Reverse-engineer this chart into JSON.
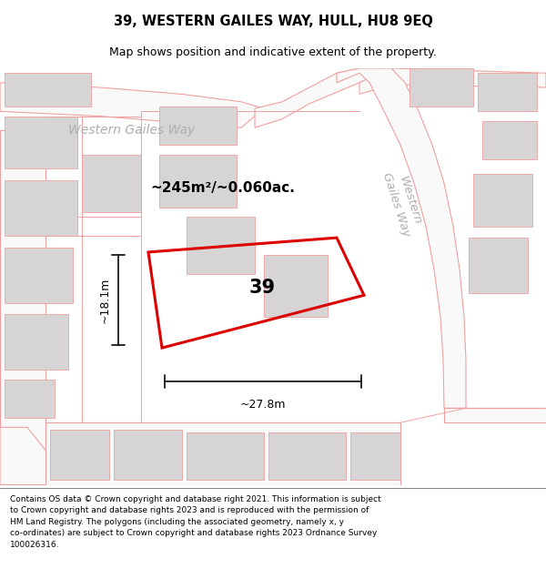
{
  "title_line1": "39, WESTERN GAILES WAY, HULL, HU8 9EQ",
  "title_line2": "Map shows position and indicative extent of the property.",
  "footer_text": "Contains OS data © Crown copyright and database right 2021. This information is subject\nto Crown copyright and database rights 2023 and is reproduced with the permission of\nHM Land Registry. The polygons (including the associated geometry, namely x, y\nco-ordinates) are subject to Crown copyright and database rights 2023 Ordnance Survey\n100026316.",
  "area_label": "~245m²/~0.060ac.",
  "number_label": "39",
  "dim_height_label": "~18.1m",
  "dim_width_label": "~27.8m",
  "road_label_left": "Western Gailes Way",
  "road_label_diag": "Western\nGailes Way",
  "map_bg": "#f5f3f3",
  "road_surface": "#faf9f9",
  "building_fill": "#d6d4d4",
  "road_line_color": "#f0a0a0",
  "plot_edge_color": "#dd0000",
  "dim_line_color": "#1a1a1a",
  "text_gray": "#b0aeae",
  "title_fontsize": 10.5,
  "subtitle_fontsize": 9.0,
  "footer_fontsize": 6.5
}
